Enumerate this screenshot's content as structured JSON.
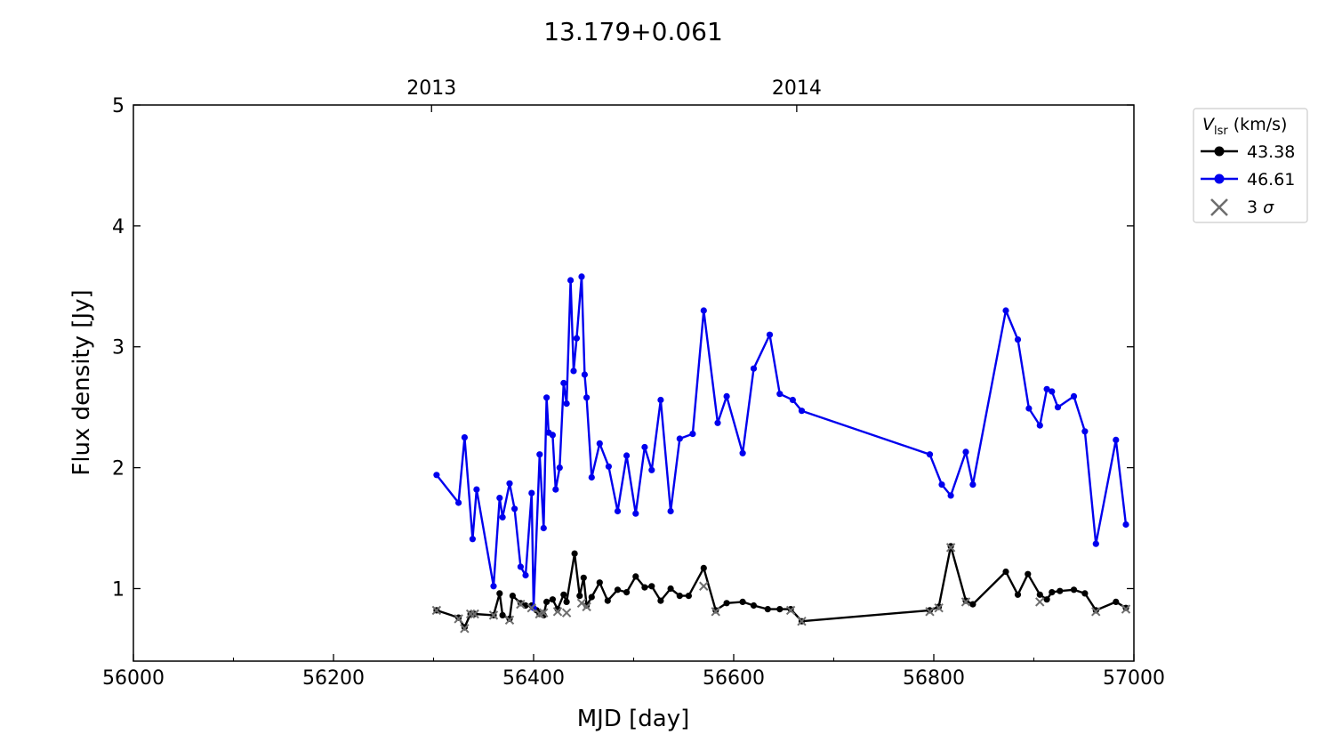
{
  "chart_data": {
    "type": "line",
    "title": "13.179+0.061",
    "xlabel": "MJD [day]",
    "ylabel": "Flux density [Jy]",
    "xlim": [
      56000,
      57000
    ],
    "ylim": [
      0.4,
      5.0
    ],
    "xticks": [
      56000,
      56200,
      56400,
      56600,
      56800,
      57000
    ],
    "xticks_minor": [
      56100,
      56300,
      56500,
      56700,
      56900
    ],
    "yticks": [
      1,
      2,
      3,
      4,
      5
    ],
    "top_axis": {
      "ticks": [
        {
          "x": 56298,
          "label": "2013"
        },
        {
          "x": 56663,
          "label": "2014"
        }
      ]
    },
    "grid": false,
    "legend": {
      "placement": "outside-top-right",
      "title_var": "V",
      "title_sub": "lsr",
      "title_unit": " (km/s)",
      "sigma_num": "3",
      "sigma_sym": "σ"
    },
    "colors": {
      "series_1": "#000000",
      "series_2": "#0000ee",
      "limit_marker": "#6e6e6e"
    },
    "series": [
      {
        "name": "43.38",
        "color": "#000000",
        "x": [
          56303,
          56325,
          56331,
          56337,
          56341,
          56360,
          56366,
          56369,
          56376,
          56379,
          56387,
          56392,
          56398,
          56403,
          56406,
          56410,
          56413,
          56419,
          56424,
          56430,
          56433,
          56441,
          56446,
          56450,
          56453,
          56458,
          56466,
          56474,
          56484,
          56493,
          56502,
          56511,
          56518,
          56527,
          56537,
          56546,
          56555,
          56570,
          56582,
          56593,
          56609,
          56620,
          56634,
          56646,
          56657,
          56668,
          56796,
          56805,
          56817,
          56832,
          56839,
          56872,
          56884,
          56894,
          56906,
          56913,
          56918,
          56926,
          56940,
          56951,
          56962,
          56982,
          56992
        ],
        "y": [
          0.82,
          0.76,
          0.68,
          0.79,
          0.79,
          0.78,
          0.96,
          0.78,
          0.75,
          0.94,
          0.88,
          0.86,
          0.86,
          0.82,
          0.79,
          0.78,
          0.89,
          0.91,
          0.83,
          0.95,
          0.89,
          1.29,
          0.94,
          1.09,
          0.86,
          0.93,
          1.05,
          0.9,
          0.99,
          0.97,
          1.1,
          1.01,
          1.02,
          0.9,
          1.0,
          0.94,
          0.94,
          1.17,
          0.82,
          0.88,
          0.89,
          0.86,
          0.83,
          0.83,
          0.83,
          0.73,
          0.82,
          0.85,
          1.35,
          0.9,
          0.87,
          1.14,
          0.95,
          1.12,
          0.95,
          0.91,
          0.97,
          0.98,
          0.99,
          0.96,
          0.82,
          0.89,
          0.84
        ]
      },
      {
        "name": "46.61",
        "color": "#0000ee",
        "x": [
          56303,
          56325,
          56331,
          56339,
          56343,
          56360,
          56366,
          56369,
          56376,
          56381,
          56387,
          56392,
          56398,
          56400,
          56406,
          56410,
          56413,
          56415,
          56419,
          56422,
          56426,
          56430,
          56433,
          56437,
          56440,
          56443,
          56448,
          56451,
          56453,
          56458,
          56466,
          56475,
          56484,
          56493,
          56502,
          56511,
          56518,
          56527,
          56537,
          56546,
          56559,
          56570,
          56584,
          56593,
          56609,
          56620,
          56636,
          56646,
          56659,
          56668,
          56796,
          56808,
          56817,
          56832,
          56839,
          56872,
          56884,
          56895,
          56906,
          56913,
          56918,
          56924,
          56940,
          56951,
          56962,
          56982,
          56992
        ],
        "y": [
          1.94,
          1.71,
          2.25,
          1.41,
          1.82,
          1.02,
          1.75,
          1.59,
          1.87,
          1.66,
          1.18,
          1.11,
          1.79,
          0.84,
          2.11,
          1.5,
          2.58,
          2.29,
          2.27,
          1.82,
          2.0,
          2.7,
          2.53,
          3.55,
          2.8,
          3.07,
          3.58,
          2.77,
          2.58,
          1.92,
          2.2,
          2.01,
          1.64,
          2.1,
          1.62,
          2.17,
          1.98,
          2.56,
          1.64,
          2.24,
          2.28,
          3.3,
          2.37,
          2.59,
          2.12,
          2.82,
          3.1,
          2.61,
          2.56,
          2.47,
          2.11,
          1.86,
          1.77,
          2.13,
          1.86,
          3.3,
          3.06,
          2.49,
          2.35,
          2.65,
          2.63,
          2.5,
          2.59,
          2.3,
          1.37,
          2.23,
          1.53
        ]
      }
    ],
    "limit_points": {
      "name": "3 σ",
      "marker": "x",
      "x": [
        56303,
        56325,
        56331,
        56337,
        56341,
        56360,
        56376,
        56387,
        56398,
        56406,
        56410,
        56424,
        56433,
        56448,
        56453,
        56570,
        56582,
        56657,
        56668,
        56796,
        56805,
        56817,
        56832,
        56906,
        56962,
        56992
      ],
      "y": [
        0.82,
        0.75,
        0.67,
        0.79,
        0.79,
        0.78,
        0.74,
        0.87,
        0.84,
        0.79,
        0.8,
        0.81,
        0.8,
        0.88,
        0.85,
        1.02,
        0.81,
        0.82,
        0.73,
        0.81,
        0.84,
        1.34,
        0.89,
        0.89,
        0.81,
        0.83
      ]
    }
  }
}
